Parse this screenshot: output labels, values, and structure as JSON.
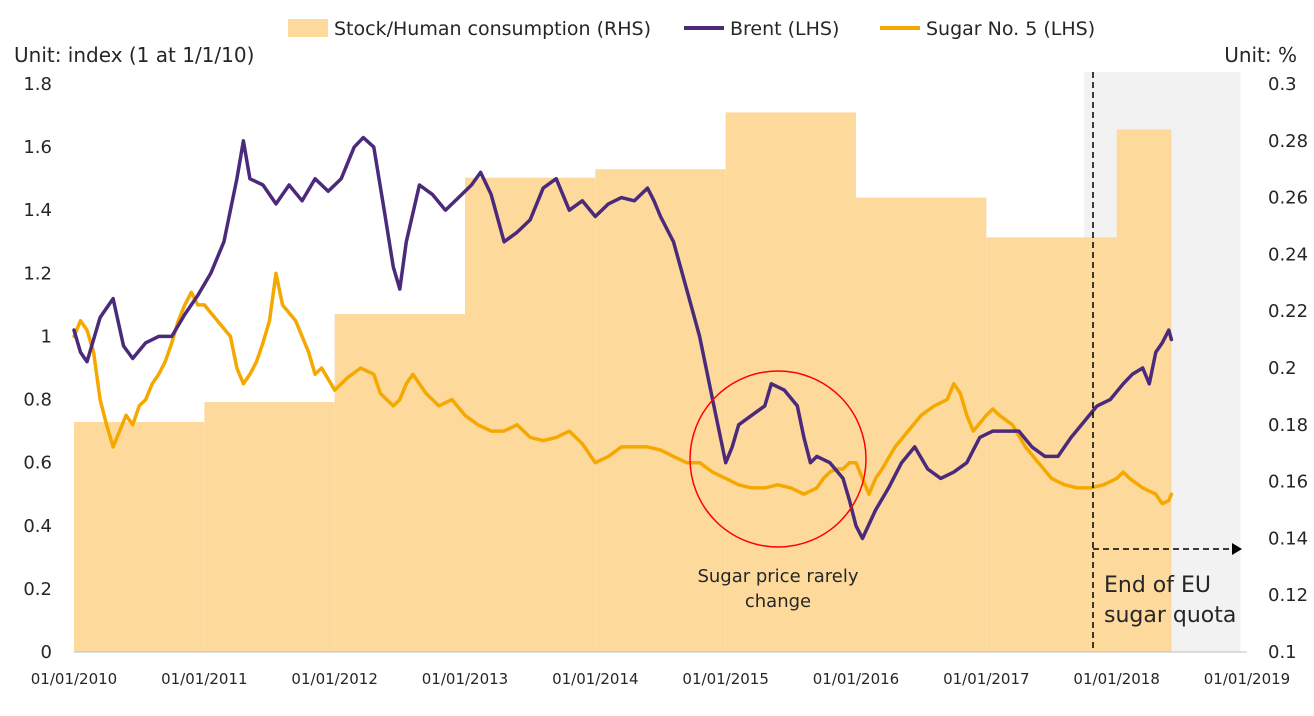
{
  "chart_data": {
    "type": "line",
    "legend": {
      "position": "top",
      "items": [
        {
          "label": "Stock/Human consumption (RHS)",
          "color": "#FDDA9C",
          "kind": "area"
        },
        {
          "label": "Brent (LHS)",
          "color": "#4B2A7B",
          "kind": "line"
        },
        {
          "label": "Sugar No. 5 (LHS)",
          "color": "#F5A800",
          "kind": "line"
        }
      ]
    },
    "left_axis": {
      "unit_label": "Unit: index (1 at 1/1/10)",
      "range": [
        0,
        1.8
      ],
      "ticks": [
        "0",
        "0.2",
        "0.4",
        "0.6",
        "0.8",
        "1",
        "1.2",
        "1.4",
        "1.6",
        "1.8"
      ]
    },
    "right_axis": {
      "unit_label": "Unit: %",
      "range": [
        0.1,
        0.3
      ],
      "ticks": [
        "0.1",
        "0.12",
        "0.14",
        "0.16",
        "0.18",
        "0.2",
        "0.22",
        "0.24",
        "0.26",
        "0.28",
        "0.3"
      ]
    },
    "x_axis": {
      "range": [
        2010,
        2019
      ],
      "ticks": [
        "01/01/2010",
        "01/01/2011",
        "01/01/2012",
        "01/01/2013",
        "01/01/2014",
        "01/01/2015",
        "01/01/2016",
        "01/01/2017",
        "01/01/2018",
        "01/01/2019"
      ]
    },
    "grid": false,
    "stock_ratio_steps": [
      {
        "from": 2010.0,
        "to": 2011.0,
        "value": 0.181
      },
      {
        "from": 2011.0,
        "to": 2012.0,
        "value": 0.188
      },
      {
        "from": 2012.0,
        "to": 2013.0,
        "value": 0.219
      },
      {
        "from": 2013.0,
        "to": 2014.0,
        "value": 0.267
      },
      {
        "from": 2014.0,
        "to": 2015.0,
        "value": 0.27
      },
      {
        "from": 2015.0,
        "to": 2016.0,
        "value": 0.29
      },
      {
        "from": 2016.0,
        "to": 2017.0,
        "value": 0.26
      },
      {
        "from": 2017.0,
        "to": 2018.0,
        "value": 0.246
      },
      {
        "from": 2018.0,
        "to": 2018.42,
        "value": 0.284
      }
    ],
    "series": [
      {
        "name": "Brent (LHS)",
        "points": [
          [
            2010.0,
            1.02
          ],
          [
            2010.05,
            0.95
          ],
          [
            2010.1,
            0.92
          ],
          [
            2010.2,
            1.06
          ],
          [
            2010.3,
            1.12
          ],
          [
            2010.38,
            0.97
          ],
          [
            2010.45,
            0.93
          ],
          [
            2010.55,
            0.98
          ],
          [
            2010.65,
            1.0
          ],
          [
            2010.75,
            1.0
          ],
          [
            2010.85,
            1.07
          ],
          [
            2010.95,
            1.13
          ],
          [
            2011.05,
            1.2
          ],
          [
            2011.15,
            1.3
          ],
          [
            2011.25,
            1.5
          ],
          [
            2011.3,
            1.62
          ],
          [
            2011.35,
            1.5
          ],
          [
            2011.45,
            1.48
          ],
          [
            2011.55,
            1.42
          ],
          [
            2011.65,
            1.48
          ],
          [
            2011.75,
            1.43
          ],
          [
            2011.85,
            1.5
          ],
          [
            2011.95,
            1.46
          ],
          [
            2012.05,
            1.5
          ],
          [
            2012.15,
            1.6
          ],
          [
            2012.22,
            1.63
          ],
          [
            2012.3,
            1.6
          ],
          [
            2012.38,
            1.4
          ],
          [
            2012.45,
            1.22
          ],
          [
            2012.5,
            1.15
          ],
          [
            2012.55,
            1.3
          ],
          [
            2012.65,
            1.48
          ],
          [
            2012.75,
            1.45
          ],
          [
            2012.85,
            1.4
          ],
          [
            2012.95,
            1.44
          ],
          [
            2013.05,
            1.48
          ],
          [
            2013.12,
            1.52
          ],
          [
            2013.2,
            1.45
          ],
          [
            2013.3,
            1.3
          ],
          [
            2013.4,
            1.33
          ],
          [
            2013.5,
            1.37
          ],
          [
            2013.6,
            1.47
          ],
          [
            2013.7,
            1.5
          ],
          [
            2013.8,
            1.4
          ],
          [
            2013.9,
            1.43
          ],
          [
            2014.0,
            1.38
          ],
          [
            2014.1,
            1.42
          ],
          [
            2014.2,
            1.44
          ],
          [
            2014.3,
            1.43
          ],
          [
            2014.4,
            1.47
          ],
          [
            2014.45,
            1.43
          ],
          [
            2014.5,
            1.38
          ],
          [
            2014.6,
            1.3
          ],
          [
            2014.7,
            1.15
          ],
          [
            2014.8,
            1.0
          ],
          [
            2014.9,
            0.8
          ],
          [
            2015.0,
            0.6
          ],
          [
            2015.05,
            0.65
          ],
          [
            2015.1,
            0.72
          ],
          [
            2015.2,
            0.75
          ],
          [
            2015.3,
            0.78
          ],
          [
            2015.35,
            0.85
          ],
          [
            2015.45,
            0.83
          ],
          [
            2015.55,
            0.78
          ],
          [
            2015.6,
            0.68
          ],
          [
            2015.65,
            0.6
          ],
          [
            2015.7,
            0.62
          ],
          [
            2015.8,
            0.6
          ],
          [
            2015.9,
            0.55
          ],
          [
            2015.95,
            0.48
          ],
          [
            2016.0,
            0.4
          ],
          [
            2016.05,
            0.36
          ],
          [
            2016.15,
            0.45
          ],
          [
            2016.25,
            0.52
          ],
          [
            2016.35,
            0.6
          ],
          [
            2016.45,
            0.65
          ],
          [
            2016.55,
            0.58
          ],
          [
            2016.65,
            0.55
          ],
          [
            2016.75,
            0.57
          ],
          [
            2016.85,
            0.6
          ],
          [
            2016.95,
            0.68
          ],
          [
            2017.05,
            0.7
          ],
          [
            2017.15,
            0.7
          ],
          [
            2017.25,
            0.7
          ],
          [
            2017.35,
            0.65
          ],
          [
            2017.45,
            0.62
          ],
          [
            2017.55,
            0.62
          ],
          [
            2017.65,
            0.68
          ],
          [
            2017.75,
            0.73
          ],
          [
            2017.85,
            0.78
          ],
          [
            2017.95,
            0.8
          ],
          [
            2018.05,
            0.85
          ],
          [
            2018.12,
            0.88
          ],
          [
            2018.2,
            0.9
          ],
          [
            2018.25,
            0.85
          ],
          [
            2018.3,
            0.95
          ],
          [
            2018.35,
            0.98
          ],
          [
            2018.4,
            1.02
          ],
          [
            2018.42,
            0.99
          ]
        ]
      },
      {
        "name": "Sugar No. 5 (LHS)",
        "points": [
          [
            2010.0,
            1.0
          ],
          [
            2010.05,
            1.05
          ],
          [
            2010.1,
            1.02
          ],
          [
            2010.15,
            0.95
          ],
          [
            2010.2,
            0.8
          ],
          [
            2010.25,
            0.72
          ],
          [
            2010.3,
            0.65
          ],
          [
            2010.35,
            0.7
          ],
          [
            2010.4,
            0.75
          ],
          [
            2010.45,
            0.72
          ],
          [
            2010.5,
            0.78
          ],
          [
            2010.55,
            0.8
          ],
          [
            2010.6,
            0.85
          ],
          [
            2010.65,
            0.88
          ],
          [
            2010.7,
            0.92
          ],
          [
            2010.75,
            0.98
          ],
          [
            2010.8,
            1.05
          ],
          [
            2010.85,
            1.1
          ],
          [
            2010.9,
            1.14
          ],
          [
            2010.95,
            1.1
          ],
          [
            2011.0,
            1.1
          ],
          [
            2011.1,
            1.05
          ],
          [
            2011.2,
            1.0
          ],
          [
            2011.25,
            0.9
          ],
          [
            2011.3,
            0.85
          ],
          [
            2011.35,
            0.88
          ],
          [
            2011.4,
            0.92
          ],
          [
            2011.45,
            0.98
          ],
          [
            2011.5,
            1.05
          ],
          [
            2011.55,
            1.2
          ],
          [
            2011.6,
            1.1
          ],
          [
            2011.7,
            1.05
          ],
          [
            2011.8,
            0.95
          ],
          [
            2011.85,
            0.88
          ],
          [
            2011.9,
            0.9
          ],
          [
            2012.0,
            0.83
          ],
          [
            2012.1,
            0.87
          ],
          [
            2012.2,
            0.9
          ],
          [
            2012.3,
            0.88
          ],
          [
            2012.35,
            0.82
          ],
          [
            2012.4,
            0.8
          ],
          [
            2012.45,
            0.78
          ],
          [
            2012.5,
            0.8
          ],
          [
            2012.55,
            0.85
          ],
          [
            2012.6,
            0.88
          ],
          [
            2012.7,
            0.82
          ],
          [
            2012.8,
            0.78
          ],
          [
            2012.9,
            0.8
          ],
          [
            2013.0,
            0.75
          ],
          [
            2013.1,
            0.72
          ],
          [
            2013.2,
            0.7
          ],
          [
            2013.3,
            0.7
          ],
          [
            2013.4,
            0.72
          ],
          [
            2013.5,
            0.68
          ],
          [
            2013.6,
            0.67
          ],
          [
            2013.7,
            0.68
          ],
          [
            2013.8,
            0.7
          ],
          [
            2013.9,
            0.66
          ],
          [
            2014.0,
            0.6
          ],
          [
            2014.1,
            0.62
          ],
          [
            2014.2,
            0.65
          ],
          [
            2014.3,
            0.65
          ],
          [
            2014.4,
            0.65
          ],
          [
            2014.5,
            0.64
          ],
          [
            2014.6,
            0.62
          ],
          [
            2014.7,
            0.6
          ],
          [
            2014.8,
            0.6
          ],
          [
            2014.9,
            0.57
          ],
          [
            2015.0,
            0.55
          ],
          [
            2015.1,
            0.53
          ],
          [
            2015.2,
            0.52
          ],
          [
            2015.3,
            0.52
          ],
          [
            2015.4,
            0.53
          ],
          [
            2015.5,
            0.52
          ],
          [
            2015.6,
            0.5
          ],
          [
            2015.7,
            0.52
          ],
          [
            2015.75,
            0.55
          ],
          [
            2015.8,
            0.57
          ],
          [
            2015.85,
            0.58
          ],
          [
            2015.9,
            0.58
          ],
          [
            2015.95,
            0.6
          ],
          [
            2016.0,
            0.6
          ],
          [
            2016.05,
            0.55
          ],
          [
            2016.1,
            0.5
          ],
          [
            2016.15,
            0.55
          ],
          [
            2016.2,
            0.58
          ],
          [
            2016.3,
            0.65
          ],
          [
            2016.4,
            0.7
          ],
          [
            2016.5,
            0.75
          ],
          [
            2016.6,
            0.78
          ],
          [
            2016.7,
            0.8
          ],
          [
            2016.75,
            0.85
          ],
          [
            2016.8,
            0.82
          ],
          [
            2016.85,
            0.75
          ],
          [
            2016.9,
            0.7
          ],
          [
            2017.0,
            0.75
          ],
          [
            2017.05,
            0.77
          ],
          [
            2017.1,
            0.75
          ],
          [
            2017.2,
            0.72
          ],
          [
            2017.3,
            0.65
          ],
          [
            2017.4,
            0.6
          ],
          [
            2017.5,
            0.55
          ],
          [
            2017.6,
            0.53
          ],
          [
            2017.7,
            0.52
          ],
          [
            2017.8,
            0.52
          ],
          [
            2017.9,
            0.53
          ],
          [
            2018.0,
            0.55
          ],
          [
            2018.05,
            0.57
          ],
          [
            2018.1,
            0.55
          ],
          [
            2018.2,
            0.52
          ],
          [
            2018.3,
            0.5
          ],
          [
            2018.35,
            0.47
          ],
          [
            2018.4,
            0.48
          ],
          [
            2018.42,
            0.5
          ]
        ]
      }
    ],
    "annotations": {
      "circle_text_lines": [
        "Sugar price rarely",
        "change"
      ],
      "quota_text_lines": [
        "End of EU",
        "sugar quota"
      ],
      "quota_date": 2017.75
    }
  }
}
